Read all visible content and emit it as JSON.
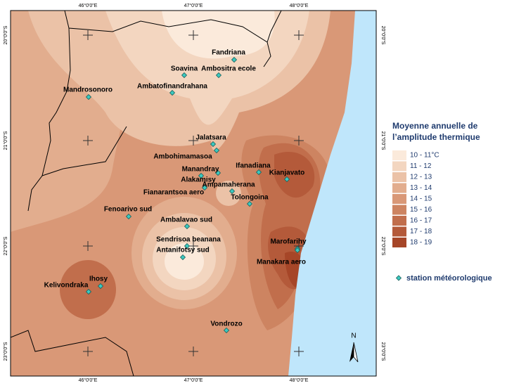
{
  "map": {
    "top_labels": [
      "46°0'0\"E",
      "47°0'0\"E",
      "48°0'0\"E"
    ],
    "bottom_labels": [
      "46°0'0\"E",
      "47°0'0\"E",
      "48°0'0\"E"
    ],
    "left_labels": [
      "20°0'0\"S",
      "21°0'0\"S",
      "22°0'0\"S",
      "23°0'0\"S"
    ],
    "right_labels": [
      "20°0'0\"S",
      "21°0'0\"S",
      "22°0'0\"S",
      "23°0'0\"S"
    ],
    "stations": [
      "Fandriana",
      "Soavina",
      "Ambositra ecole",
      "Ambatofinandrahana",
      "Mandrosonoro",
      "Jalatsara",
      "Ambohimamasoa",
      "Ifanadiana",
      "Manandray",
      "Kianjavato",
      "Alakamisy",
      "Fianarantsoa aero",
      "Ampamaherana",
      "Tolongoina",
      "Fenoarivo sud",
      "Ambalavao sud",
      "Sendrisoa beanana",
      "Antanifotsy sud",
      "Marofarihy",
      "Manakara aero",
      "Ihosy",
      "Kelivondraka",
      "Vondrozo"
    ],
    "north": "N",
    "legend": {
      "title": [
        "Moyenne annuelle de",
        "l’amplitude thermique"
      ],
      "classes": [
        {
          "label": "10 - 11°C",
          "color": "#fbeadb"
        },
        {
          "label": "11 - 12",
          "color": "#f3d6c0"
        },
        {
          "label": "12 - 13",
          "color": "#ebc2a7"
        },
        {
          "label": "13 - 14",
          "color": "#e2ad8e"
        },
        {
          "label": "14 - 15",
          "color": "#d99877"
        },
        {
          "label": "15 - 16",
          "color": "#cd8461"
        },
        {
          "label": "16 - 17",
          "color": "#c16e4c"
        },
        {
          "label": "17 - 18",
          "color": "#b45a3a"
        },
        {
          "label": "18 - 19",
          "color": "#a64628"
        }
      ],
      "station_label": "station météorologique"
    }
  }
}
